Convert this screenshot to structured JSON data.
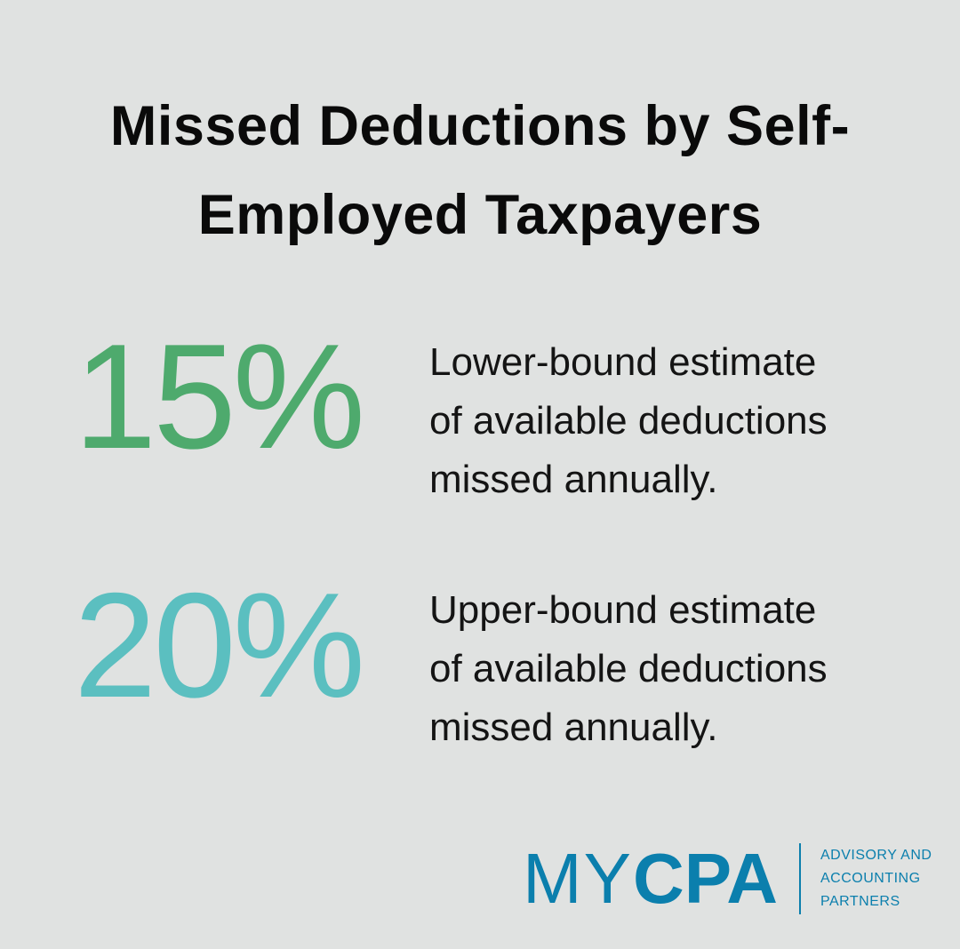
{
  "title": {
    "line1": "Missed Deductions by Self-",
    "line2": "Employed Taxpayers"
  },
  "stats": [
    {
      "value": "15%",
      "color": "#4eaa6d",
      "lines": [
        "Lower-bound estimate",
        "of available deductions",
        "missed annually."
      ]
    },
    {
      "value": "20%",
      "color": "#5bbfc0",
      "lines": [
        "Upper-bound estimate",
        "of available deductions",
        "missed annually."
      ]
    }
  ],
  "logo": {
    "my": "MY",
    "cpa": "CPA",
    "tagline": [
      "ADVISORY AND",
      "ACCOUNTING",
      "PARTNERS"
    ],
    "color": "#0b7fad"
  }
}
